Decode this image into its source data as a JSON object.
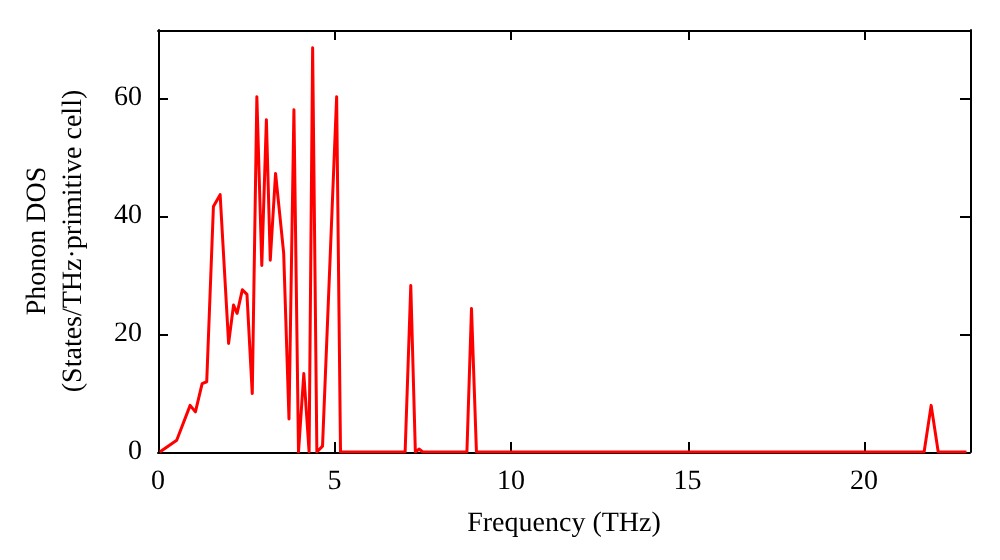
{
  "chart_data": {
    "type": "line",
    "xlabel": "Frequency (THz)",
    "ylabel": "Phonon DOS\n(States/THz·primitive cell)",
    "xlim": [
      0,
      23
    ],
    "xticks": [
      0,
      5,
      10,
      15,
      20
    ],
    "ylim": [
      0,
      71.5
    ],
    "yticks": [
      0,
      20,
      40,
      60
    ],
    "grid": false,
    "marker": "none",
    "line_style": "solid",
    "series": [
      {
        "color": "#ff0000",
        "x": [
          0.05,
          0.53,
          0.91,
          1.06,
          1.25,
          1.38,
          1.57,
          1.76,
          2.0,
          2.14,
          2.24,
          2.39,
          2.52,
          2.67,
          2.8,
          2.94,
          3.07,
          3.18,
          3.33,
          3.56,
          3.71,
          3.85,
          3.98,
          4.13,
          4.28,
          4.38,
          4.5,
          4.66,
          5.06,
          5.17,
          7.0,
          7.16,
          7.29,
          7.4,
          7.5,
          8.75,
          8.88,
          9.02,
          21.7,
          21.9,
          22.1,
          22.9
        ],
        "values": [
          0,
          2,
          7.9,
          6.8,
          11.6,
          11.9,
          41.6,
          43.6,
          18.4,
          24.9,
          23.5,
          27.5,
          26.7,
          9.9,
          60.2,
          31.6,
          56.3,
          32.5,
          47.2,
          33.7,
          5.6,
          58,
          0,
          13.3,
          0,
          68.5,
          0,
          1,
          60.2,
          0,
          0,
          28.2,
          0,
          0.5,
          0,
          0,
          24.3,
          0,
          0,
          7.9,
          0,
          0
        ]
      }
    ]
  }
}
